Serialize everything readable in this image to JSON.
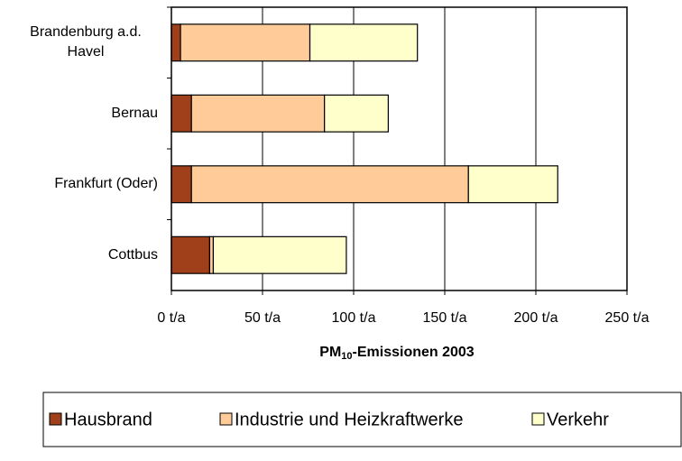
{
  "chart_data": {
    "type": "stacked_barh",
    "categories": [
      "Brandenburg a.d. Havel",
      "Bernau",
      "Frankfurt (Oder)",
      "Cottbus"
    ],
    "series": [
      {
        "name": "Hausbrand",
        "color": "#a0401a",
        "values": [
          5,
          11,
          11,
          21
        ]
      },
      {
        "name": "Industrie und Heizkraftwerke",
        "color": "#ffcc99",
        "values": [
          71,
          73,
          152,
          2
        ]
      },
      {
        "name": "Verkehr",
        "color": "#ffffcc",
        "values": [
          59,
          35,
          49,
          73
        ]
      }
    ],
    "xlabel": {
      "main": "PM",
      "sub": "10",
      "rest": "-Emissionen 2003"
    },
    "xlim": [
      0,
      250
    ],
    "xticks": [
      {
        "value": 0,
        "label": "0 t/a"
      },
      {
        "value": 50,
        "label": "50 t/a"
      },
      {
        "value": 100,
        "label": "100 t/a"
      },
      {
        "value": 150,
        "label": "150 t/a"
      },
      {
        "value": 200,
        "label": "200 t/a"
      },
      {
        "value": 250,
        "label": "250 t/a"
      }
    ],
    "grid": true,
    "legend": "bottom"
  }
}
